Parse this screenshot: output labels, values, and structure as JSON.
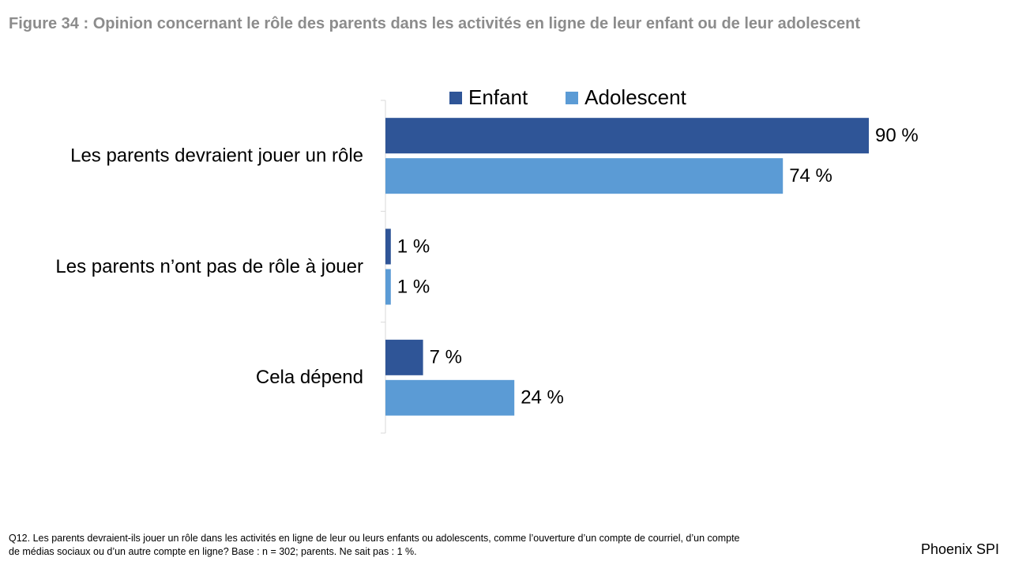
{
  "title": "Figure 34 : Opinion concernant le rôle des parents dans les activités en ligne de leur enfant ou de leur adolescent",
  "chart_data": {
    "type": "bar",
    "orientation": "horizontal",
    "categories": [
      "Les parents devraient jouer un rôle",
      "Les parents n’ont pas de rôle à jouer",
      "Cela dépend"
    ],
    "series": [
      {
        "name": "Enfant",
        "color": "#2f5597",
        "values": [
          90,
          1,
          7
        ],
        "labels": [
          "90 %",
          "1 %",
          "7 %"
        ]
      },
      {
        "name": "Adolescent",
        "color": "#5b9bd5",
        "values": [
          74,
          1,
          24
        ],
        "labels": [
          "74 %",
          "1 %",
          "24 %"
        ]
      }
    ],
    "xlim": [
      0,
      100
    ],
    "legend_position": "top",
    "grid": false
  },
  "legend": {
    "enfant": "Enfant",
    "adolescent": "Adolescent"
  },
  "footnote": {
    "line1": "Q12. Les parents devraient-ils jouer un rôle dans les activités en ligne de leur ou leurs enfants ou adolescents, comme l’ouverture d’un compte de courriel, d’un compte",
    "line2": "de médias sociaux ou d’un autre compte en ligne? Base : n = 302; parents. Ne sait pas : 1 %."
  },
  "brand": "Phoenix SPI"
}
